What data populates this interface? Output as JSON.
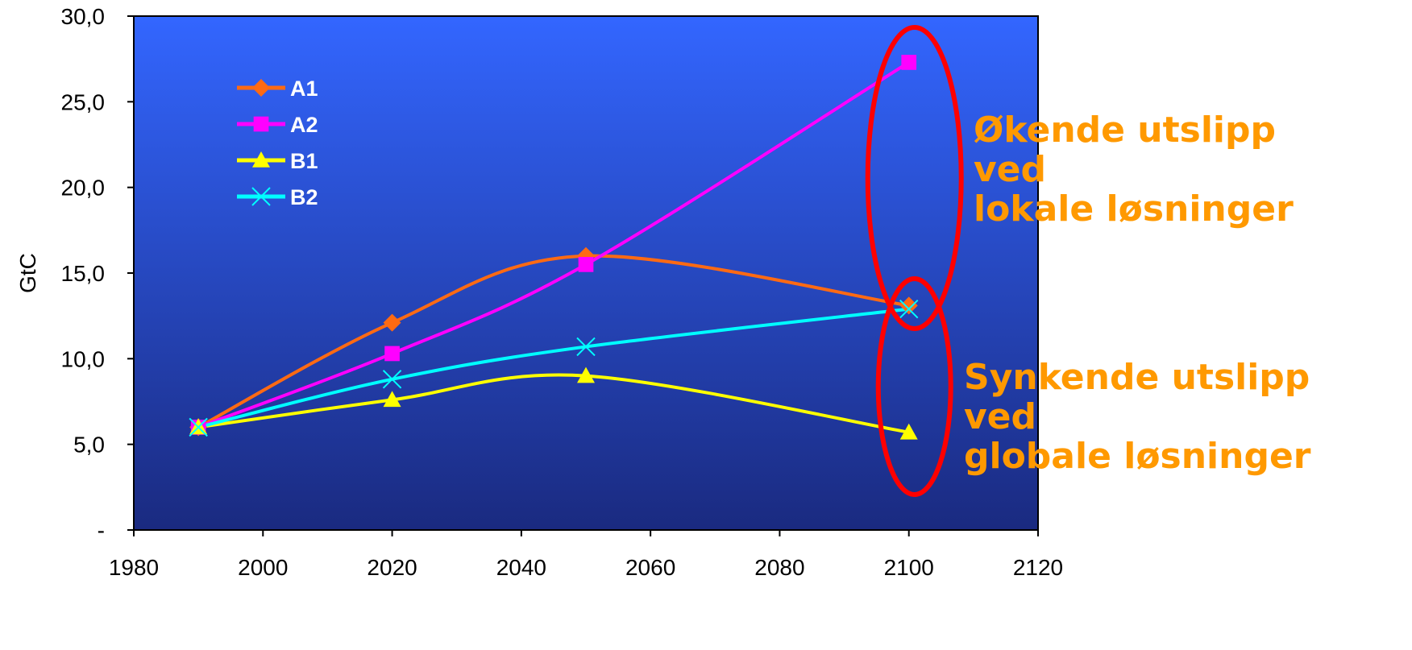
{
  "chart_data": {
    "type": "line",
    "ylabel": "GtC",
    "xlim": [
      1980,
      2120
    ],
    "ylim": [
      0,
      30
    ],
    "x_ticks": [
      "1980",
      "2000",
      "2020",
      "2040",
      "2060",
      "2080",
      "2100",
      "2120"
    ],
    "y_ticks": [
      "-",
      "5,0",
      "10,0",
      "15,0",
      "20,0",
      "25,0",
      "30,0"
    ],
    "x": [
      1990,
      2020,
      2050,
      2100
    ],
    "series": [
      {
        "name": "A1",
        "values": [
          6.0,
          12.1,
          16.0,
          13.1
        ],
        "color": "#ff6a13",
        "marker": "diamond"
      },
      {
        "name": "A2",
        "values": [
          6.0,
          10.3,
          15.5,
          27.3
        ],
        "color": "#ff00ff",
        "marker": "square"
      },
      {
        "name": "B1",
        "values": [
          6.0,
          7.6,
          9.0,
          5.7
        ],
        "color": "#ffff00",
        "marker": "triangle"
      },
      {
        "name": "B2",
        "values": [
          6.0,
          8.8,
          10.7,
          12.9
        ],
        "color": "#00ffff",
        "marker": "x"
      }
    ],
    "grid": false,
    "legend_position": "top-left",
    "plot_background": {
      "top": "#3366ff",
      "bottom": "#1a2a80"
    },
    "annotations": [
      {
        "id": "increase",
        "lines": [
          "Økende utslipp",
          "ved",
          "lokale løsninger"
        ],
        "color": "#ff9900"
      },
      {
        "id": "decrease",
        "lines": [
          "Synkende utslipp",
          "ved",
          "globale løsninger"
        ],
        "color": "#ff9900"
      }
    ],
    "highlight_color": "#ff0000"
  }
}
